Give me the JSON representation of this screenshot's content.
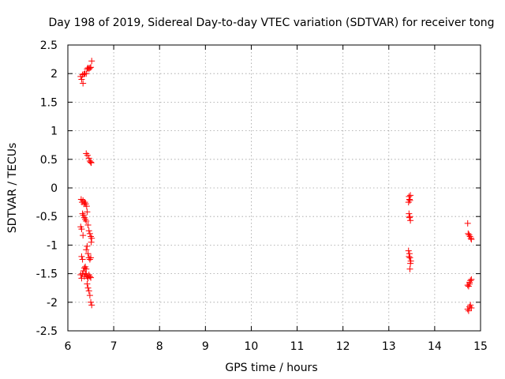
{
  "chart_data": {
    "type": "scatter",
    "title": "Day 198 of 2019, Sidereal Day-to-day VTEC variation (SDTVAR) for receiver tong",
    "xlabel": "GPS time / hours",
    "ylabel": "SDTVAR / TECUs",
    "xlim": [
      6,
      15
    ],
    "ylim": [
      -2.5,
      2.5
    ],
    "xticks": [
      6,
      7,
      8,
      9,
      10,
      11,
      12,
      13,
      14,
      15
    ],
    "yticks": [
      -2.5,
      -2,
      -1.5,
      -1,
      -0.5,
      0,
      0.5,
      1,
      1.5,
      2,
      2.5
    ],
    "xtick_labels": [
      "6",
      "7",
      "8",
      "9",
      "10",
      "11",
      "12",
      "13",
      "14",
      "15"
    ],
    "ytick_labels": [
      "-2.5",
      "-2",
      "-1.5",
      "-1",
      "-0.5",
      "0",
      "0.5",
      "1",
      "1.5",
      "2",
      "2.5"
    ],
    "grid": true,
    "marker": "+",
    "marker_color": "#ff0000",
    "series": [
      {
        "name": "SDTVAR",
        "points": [
          [
            6.28,
            1.95
          ],
          [
            6.3,
            1.9
          ],
          [
            6.32,
            1.98
          ],
          [
            6.33,
            1.83
          ],
          [
            6.35,
            1.99
          ],
          [
            6.37,
            2.0
          ],
          [
            6.4,
            2.0
          ],
          [
            6.42,
            2.08
          ],
          [
            6.44,
            2.1
          ],
          [
            6.46,
            2.08
          ],
          [
            6.48,
            2.1
          ],
          [
            6.5,
            2.11
          ],
          [
            6.52,
            2.22
          ],
          [
            6.4,
            0.6
          ],
          [
            6.43,
            0.57
          ],
          [
            6.46,
            0.52
          ],
          [
            6.48,
            0.47
          ],
          [
            6.5,
            0.45
          ],
          [
            6.51,
            0.44
          ],
          [
            6.29,
            -0.2
          ],
          [
            6.31,
            -0.25
          ],
          [
            6.33,
            -0.22
          ],
          [
            6.35,
            -0.28
          ],
          [
            6.37,
            -0.25
          ],
          [
            6.39,
            -0.28
          ],
          [
            6.41,
            -0.32
          ],
          [
            6.32,
            -0.45
          ],
          [
            6.34,
            -0.48
          ],
          [
            6.36,
            -0.52
          ],
          [
            6.38,
            -0.55
          ],
          [
            6.4,
            -0.58
          ],
          [
            6.42,
            -0.42
          ],
          [
            6.28,
            -0.68
          ],
          [
            6.3,
            -0.72
          ],
          [
            6.44,
            -0.65
          ],
          [
            6.46,
            -0.75
          ],
          [
            6.48,
            -0.8
          ],
          [
            6.5,
            -0.85
          ],
          [
            6.52,
            -0.88
          ],
          [
            6.51,
            -0.95
          ],
          [
            6.33,
            -0.83
          ],
          [
            6.42,
            -1.02
          ],
          [
            6.4,
            -1.08
          ],
          [
            6.3,
            -1.2
          ],
          [
            6.32,
            -1.25
          ],
          [
            6.44,
            -1.15
          ],
          [
            6.46,
            -1.22
          ],
          [
            6.48,
            -1.25
          ],
          [
            6.5,
            -1.22
          ],
          [
            6.28,
            -1.52
          ],
          [
            6.3,
            -1.58
          ],
          [
            6.32,
            -1.5
          ],
          [
            6.34,
            -1.45
          ],
          [
            6.36,
            -1.4
          ],
          [
            6.38,
            -1.38
          ],
          [
            6.4,
            -1.42
          ],
          [
            6.36,
            -1.55
          ],
          [
            6.38,
            -1.5
          ],
          [
            6.4,
            -1.52
          ],
          [
            6.42,
            -1.55
          ],
          [
            6.44,
            -1.58
          ],
          [
            6.46,
            -1.52
          ],
          [
            6.48,
            -1.55
          ],
          [
            6.5,
            -1.57
          ],
          [
            6.42,
            -1.68
          ],
          [
            6.44,
            -1.75
          ],
          [
            6.46,
            -1.8
          ],
          [
            6.48,
            -1.88
          ],
          [
            6.5,
            -2.0
          ],
          [
            6.52,
            -2.05
          ],
          [
            13.44,
            -0.15
          ],
          [
            13.46,
            -0.22
          ],
          [
            13.43,
            -0.25
          ],
          [
            13.45,
            -0.2
          ],
          [
            13.47,
            -0.13
          ],
          [
            13.44,
            -0.45
          ],
          [
            13.45,
            -0.52
          ],
          [
            13.47,
            -0.57
          ],
          [
            13.46,
            -0.5
          ],
          [
            13.43,
            -1.1
          ],
          [
            13.45,
            -1.15
          ],
          [
            13.44,
            -1.2
          ],
          [
            13.46,
            -1.22
          ],
          [
            13.48,
            -1.28
          ],
          [
            13.47,
            -1.32
          ],
          [
            13.46,
            -1.42
          ],
          [
            14.72,
            -0.62
          ],
          [
            14.73,
            -0.8
          ],
          [
            14.75,
            -0.82
          ],
          [
            14.77,
            -0.85
          ],
          [
            14.79,
            -0.88
          ],
          [
            14.8,
            -0.9
          ],
          [
            14.72,
            -1.7
          ],
          [
            14.74,
            -1.72
          ],
          [
            14.76,
            -1.65
          ],
          [
            14.78,
            -1.62
          ],
          [
            14.8,
            -1.6
          ],
          [
            14.76,
            -1.68
          ],
          [
            14.72,
            -2.12
          ],
          [
            14.74,
            -2.15
          ],
          [
            14.76,
            -2.08
          ],
          [
            14.78,
            -2.05
          ],
          [
            14.8,
            -2.1
          ]
        ]
      }
    ]
  }
}
